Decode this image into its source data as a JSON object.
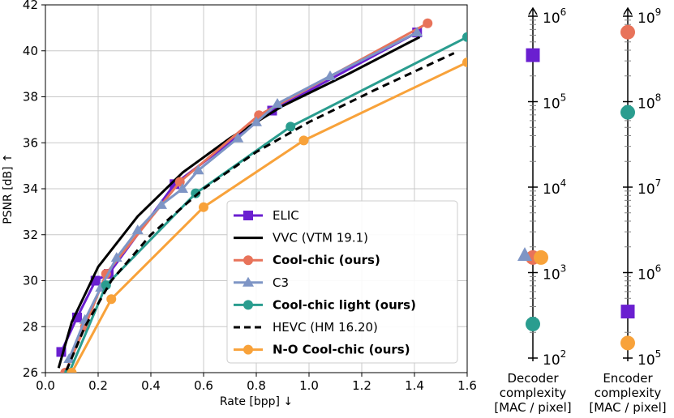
{
  "chart_data": [
    {
      "type": "line",
      "title": "",
      "xlabel": "Rate [bpp] ↓",
      "ylabel": "PSNR [dB] ↑",
      "xlim": [
        0.0,
        1.6
      ],
      "ylim": [
        26,
        42
      ],
      "xticks": [
        "0.0",
        "0.2",
        "0.4",
        "0.6",
        "0.8",
        "1.0",
        "1.2",
        "1.4",
        "1.6"
      ],
      "yticks": [
        "26",
        "28",
        "30",
        "32",
        "34",
        "36",
        "38",
        "40",
        "42"
      ],
      "grid": true,
      "legend_position": "bottom-right",
      "series": [
        {
          "name": "ELIC",
          "color": "#6a1fd0",
          "marker": "square",
          "dashed": false,
          "bold": false,
          "x": [
            0.06,
            0.12,
            0.19,
            0.24,
            0.49,
            0.86,
            1.41
          ],
          "y": [
            26.9,
            28.4,
            30.0,
            30.3,
            34.2,
            37.4,
            40.8
          ]
        },
        {
          "name": "VVC (VTM 19.1)",
          "color": "#000000",
          "marker": "none",
          "dashed": false,
          "bold": false,
          "x": [
            0.05,
            0.1,
            0.2,
            0.35,
            0.52,
            0.7,
            0.9,
            1.15,
            1.42
          ],
          "y": [
            26.2,
            28.2,
            30.6,
            32.8,
            34.7,
            36.2,
            37.6,
            39.0,
            40.6
          ]
        },
        {
          "name": "Cool-chic (ours)",
          "color": "#e8735a",
          "marker": "circle",
          "dashed": false,
          "bold": true,
          "x": [
            0.075,
            0.15,
            0.23,
            0.51,
            0.81,
            1.45
          ],
          "y": [
            26.0,
            28.0,
            30.3,
            34.3,
            37.2,
            41.2
          ]
        },
        {
          "name": "C3",
          "color": "#7e95c5",
          "marker": "triangle",
          "dashed": false,
          "bold": false,
          "x": [
            0.09,
            0.15,
            0.21,
            0.27,
            0.35,
            0.44,
            0.52,
            0.58,
            0.73,
            0.8,
            0.88,
            1.08,
            1.41
          ],
          "y": [
            26.6,
            28.3,
            29.7,
            31.0,
            32.2,
            33.3,
            34.0,
            34.8,
            36.2,
            36.9,
            37.7,
            38.9,
            40.8
          ]
        },
        {
          "name": "Cool-chic light (ours)",
          "color": "#2a9d8f",
          "marker": "circle",
          "dashed": false,
          "bold": true,
          "x": [
            0.09,
            0.23,
            0.57,
            0.93,
            1.6
          ],
          "y": [
            26.0,
            29.8,
            33.8,
            36.7,
            40.6
          ]
        },
        {
          "name": "HEVC (HM 16.20)",
          "color": "#000000",
          "marker": "none",
          "dashed": true,
          "bold": false,
          "x": [
            0.08,
            0.15,
            0.25,
            0.4,
            0.6,
            0.8,
            1.0,
            1.25,
            1.55
          ],
          "y": [
            26.1,
            28.0,
            30.0,
            32.0,
            34.0,
            35.6,
            36.9,
            38.3,
            39.9
          ]
        },
        {
          "name": "N-O Cool-chic (ours)",
          "color": "#f8a23a",
          "marker": "circle",
          "dashed": false,
          "bold": true,
          "x": [
            0.1,
            0.25,
            0.6,
            0.98,
            1.6
          ],
          "y": [
            26.0,
            29.2,
            33.2,
            36.1,
            39.5
          ]
        }
      ]
    },
    {
      "type": "scatter",
      "scale": "log",
      "xlabel": [
        "Decoder",
        "complexity",
        "[MAC / pixel]"
      ],
      "ylim_exp": [
        2,
        6
      ],
      "ticks": [
        {
          "base": "10",
          "exp": "2"
        },
        {
          "base": "10",
          "exp": "3"
        },
        {
          "base": "10",
          "exp": "4"
        },
        {
          "base": "10",
          "exp": "5"
        },
        {
          "base": "10",
          "exp": "6"
        }
      ],
      "points": [
        {
          "name": "ELIC",
          "value": 350000
        },
        {
          "name": "Cool-chic (ours)",
          "value": 1500
        },
        {
          "name": "C3",
          "value": 1600
        },
        {
          "name": "N-O Cool-chic (ours)",
          "value": 1500
        },
        {
          "name": "Cool-chic light (ours)",
          "value": 250
        }
      ]
    },
    {
      "type": "scatter",
      "scale": "log",
      "xlabel": [
        "Encoder",
        "complexity",
        "[MAC / pixel]"
      ],
      "ylim_exp": [
        5,
        9
      ],
      "ticks": [
        {
          "base": "10",
          "exp": "5"
        },
        {
          "base": "10",
          "exp": "6"
        },
        {
          "base": "10",
          "exp": "7"
        },
        {
          "base": "10",
          "exp": "8"
        },
        {
          "base": "10",
          "exp": "9"
        }
      ],
      "points": [
        {
          "name": "Cool-chic (ours)",
          "value": 650000000
        },
        {
          "name": "Cool-chic light (ours)",
          "value": 75000000
        },
        {
          "name": "ELIC",
          "value": 350000
        },
        {
          "name": "N-O Cool-chic (ours)",
          "value": 150000
        }
      ]
    }
  ]
}
